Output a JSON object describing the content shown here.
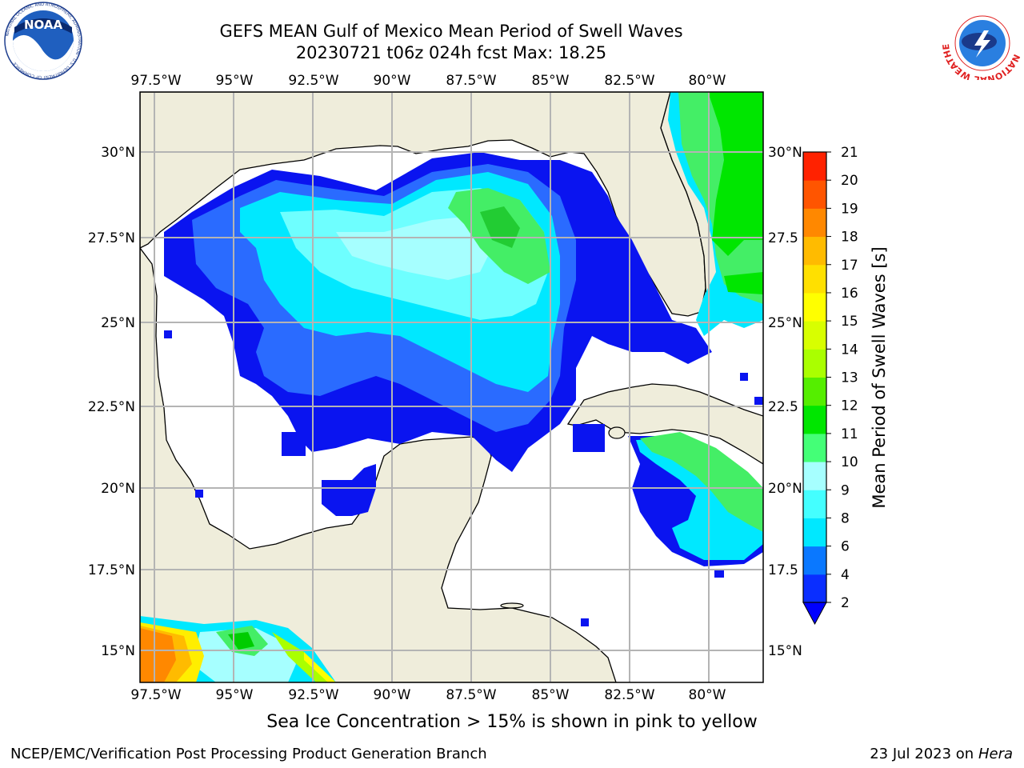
{
  "header": {
    "title_line1": "GEFS MEAN Gulf of Mexico Mean Period of Swell Waves",
    "title_line2": "20230721 t06z 024h fcst   Max: 18.25"
  },
  "logos": {
    "left": {
      "icon": "noaa-logo",
      "text": "NOAA",
      "ring_text": "NATIONAL OCEANIC AND ATMOSPHERIC ADMINISTRATION · U.S. DEPARTMENT OF COMMERCE"
    },
    "right": {
      "icon": "nws-logo",
      "ring_text": "NATIONAL WEATHER SERVICE"
    }
  },
  "map": {
    "lon_labels": [
      "97.5°W",
      "95°W",
      "92.5°W",
      "90°W",
      "87.5°W",
      "85°W",
      "82.5°W",
      "80°W"
    ],
    "lat_labels_left": [
      "30°N",
      "27.5°N",
      "25°N",
      "22.5°N",
      "20°N",
      "17.5°N",
      "15°N"
    ],
    "lat_labels_right": [
      "30°N",
      "27.5",
      "25°N",
      "22.5",
      "20°N",
      "17.5",
      "15°N"
    ],
    "colors": {
      "land": "#efeddb",
      "coast": "#000000",
      "grid": "#b4b4b4"
    }
  },
  "colorbar": {
    "label": "Mean Period of Swell Waves [s]",
    "ticks": [
      "2",
      "4",
      "6",
      "8",
      "9",
      "10",
      "11",
      "12",
      "13",
      "14",
      "15",
      "16",
      "17",
      "18",
      "19",
      "20",
      "21"
    ],
    "colors": [
      "#0a2eff",
      "#0a78ff",
      "#00e8ff",
      "#44ffff",
      "#a6ffff",
      "#44ff77",
      "#00e600",
      "#55ee00",
      "#aaff00",
      "#d8ff00",
      "#ffff00",
      "#ffe000",
      "#ffbb00",
      "#ff8800",
      "#ff5500",
      "#ff2200",
      "#ff0000"
    ],
    "extend_color": "#0000ff"
  },
  "footer": {
    "note": "Sea Ice Concentration > 15% is shown in pink to yellow",
    "credit_left": "NCEP/EMC/Verification Post Processing Product Generation Branch",
    "credit_date": "23 Jul 2023 on ",
    "credit_host": "Hera"
  }
}
